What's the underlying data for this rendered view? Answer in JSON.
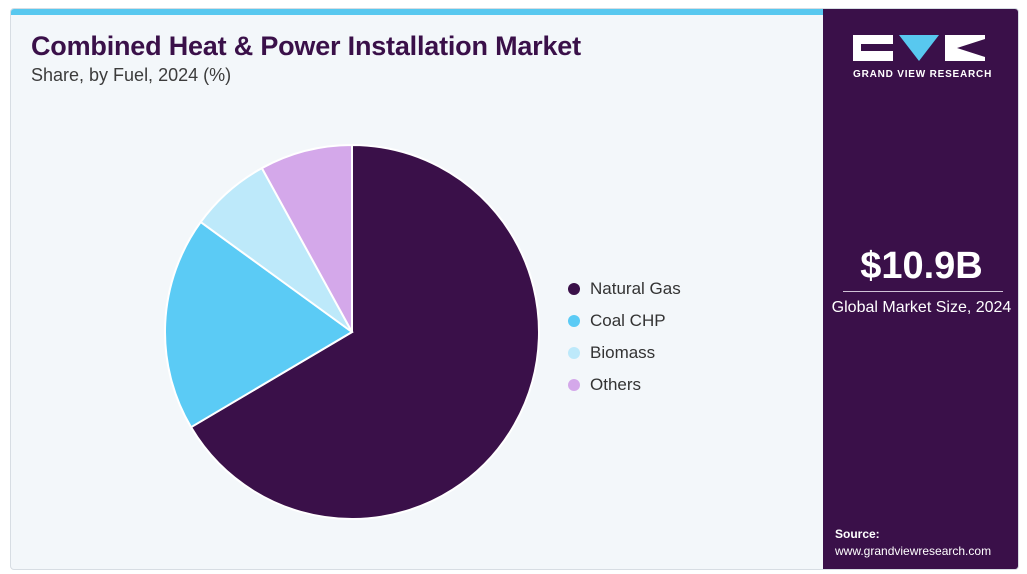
{
  "header": {
    "title": "Combined Heat & Power Installation Market",
    "subtitle": "Share, by Fuel, 2024 (%)"
  },
  "chart_data": {
    "type": "pie",
    "title": "Combined Heat & Power Installation Market",
    "subtitle": "Share, by Fuel, 2024 (%)",
    "categories": [
      "Natural Gas",
      "Coal CHP",
      "Biomass",
      "Others"
    ],
    "values": [
      66.5,
      18.5,
      7.0,
      8.0
    ],
    "colors": [
      "#3a1049",
      "#5bcbf5",
      "#bde9fa",
      "#d4a8ea"
    ],
    "legend_position": "right"
  },
  "sidebar": {
    "brand": "GRAND VIEW RESEARCH",
    "stat_value": "$10.9B",
    "stat_label": "Global Market Size, 2024",
    "source_label": "Source:",
    "source_url": "www.grandviewresearch.com"
  }
}
